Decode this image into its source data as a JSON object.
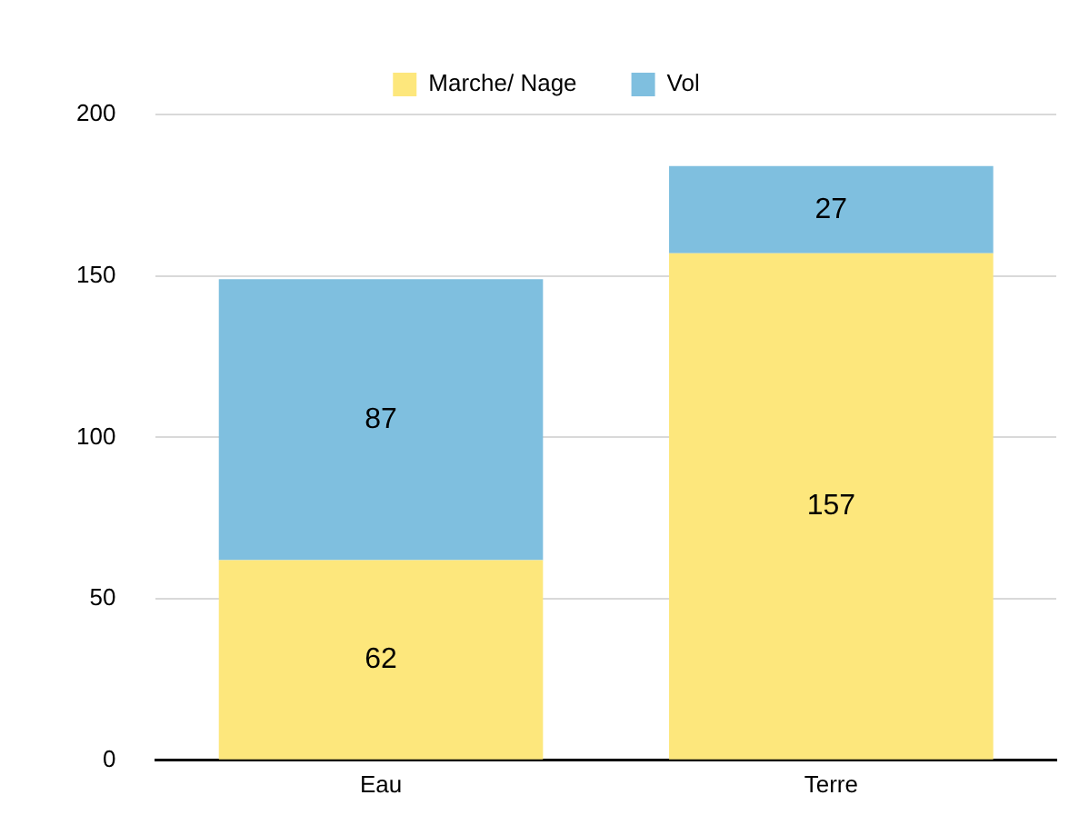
{
  "chart_data": {
    "type": "bar",
    "stacked": true,
    "categories": [
      "Eau",
      "Terre"
    ],
    "series": [
      {
        "name": "Marche/ Nage",
        "color": "#fde77c",
        "values": [
          62,
          157
        ]
      },
      {
        "name": "Vol",
        "color": "#7fbfdf",
        "values": [
          87,
          27
        ]
      }
    ],
    "ylim": [
      0,
      200
    ],
    "yticks": [
      0,
      50,
      100,
      150,
      200
    ],
    "grid": "y",
    "legend": "top",
    "data_labels": true
  }
}
